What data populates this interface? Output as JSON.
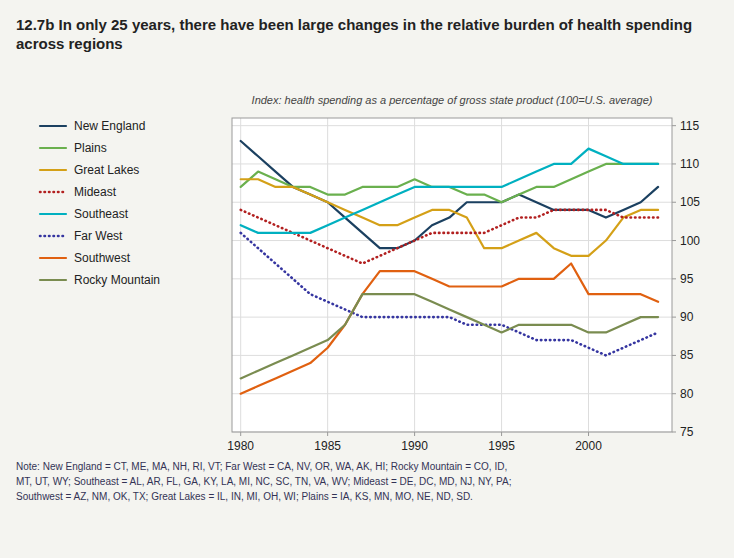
{
  "chart_data": {
    "type": "line",
    "title": "12.7b In only 25 years, there have been large changes in the relative burden of health spending across regions",
    "subtitle": "Index: health spending as a percentage of gross state product (100=U.S. average)",
    "annotations": [
      "Note: New England = CT, ME, MA, NH, RI, VT; Far West = CA, NV, OR, WA, AK, HI; Rocky Mountain = CO, ID,\nMT, UT, WY; Southeast = AL, AR, FL, GA, KY, LA, MI, NC, SC, TN, VA, WV; Mideast = DE, DC, MD, NJ, NY, PA;\nSouthwest = AZ, NM, OK, TX; Great Lakes = IL, IN, MI, OH, WI; Plains = IA, KS, MN, MO, NE, ND, SD."
    ],
    "x": [
      1980,
      1981,
      1982,
      1983,
      1984,
      1985,
      1986,
      1987,
      1988,
      1989,
      1990,
      1991,
      1992,
      1993,
      1994,
      1995,
      1996,
      1997,
      1998,
      1999,
      2000,
      2001,
      2002,
      2003,
      2004
    ],
    "series": [
      {
        "name": "New England",
        "color": "#1b4060",
        "line_style": "solid",
        "values": [
          113,
          111,
          109,
          107,
          106,
          105,
          103,
          101,
          99,
          99,
          100,
          102,
          103,
          105,
          105,
          105,
          106,
          105,
          104,
          104,
          104,
          103,
          104,
          105,
          107
        ]
      },
      {
        "name": "Plains",
        "color": "#6ab04e",
        "line_style": "solid",
        "values": [
          107,
          109,
          108,
          107,
          107,
          106,
          106,
          107,
          107,
          107,
          108,
          107,
          107,
          106,
          106,
          105,
          106,
          107,
          107,
          108,
          109,
          110,
          110,
          110,
          110
        ]
      },
      {
        "name": "Great Lakes",
        "color": "#d4a017",
        "line_style": "solid",
        "values": [
          108,
          108,
          107,
          107,
          106,
          105,
          104,
          103,
          102,
          102,
          103,
          104,
          104,
          103,
          99,
          99,
          100,
          101,
          99,
          98,
          98,
          100,
          103,
          104,
          104
        ]
      },
      {
        "name": "Mideast",
        "color": "#b22020",
        "line_style": "dotted",
        "values": [
          104,
          103,
          102,
          101,
          100,
          99,
          98,
          97,
          98,
          99,
          100,
          101,
          101,
          101,
          101,
          102,
          103,
          103,
          104,
          104,
          104,
          104,
          103,
          103,
          103
        ]
      },
      {
        "name": "Southeast",
        "color": "#00b0c0",
        "line_style": "solid",
        "values": [
          102,
          101,
          101,
          101,
          101,
          102,
          103,
          104,
          105,
          106,
          107,
          107,
          107,
          107,
          107,
          107,
          108,
          109,
          110,
          110,
          112,
          111,
          110,
          110,
          110
        ]
      },
      {
        "name": "Far West",
        "color": "#3535a0",
        "line_style": "dotted",
        "values": [
          101,
          99,
          97,
          95,
          93,
          92,
          91,
          90,
          90,
          90,
          90,
          90,
          90,
          89,
          89,
          89,
          88,
          87,
          87,
          87,
          86,
          85,
          86,
          87,
          88
        ]
      },
      {
        "name": "Southwest",
        "color": "#e06010",
        "line_style": "solid",
        "values": [
          80,
          81,
          82,
          83,
          84,
          86,
          89,
          93,
          96,
          96,
          96,
          95,
          94,
          94,
          94,
          94,
          95,
          95,
          95,
          97,
          93,
          93,
          93,
          93,
          92
        ]
      },
      {
        "name": "Rocky Mountain",
        "color": "#7a8c50",
        "line_style": "solid",
        "values": [
          82,
          83,
          84,
          85,
          86,
          87,
          89,
          93,
          93,
          93,
          93,
          92,
          91,
          90,
          89,
          88,
          89,
          89,
          89,
          89,
          88,
          88,
          89,
          90,
          90
        ]
      }
    ],
    "xlim": [
      1979.5,
      2004.8
    ],
    "ylim": [
      75,
      116
    ],
    "xticks": [
      1980,
      1985,
      1990,
      1995,
      2000
    ],
    "yticks": [
      75,
      80,
      85,
      90,
      95,
      100,
      105,
      110,
      115
    ],
    "grid": true,
    "legend": "left"
  }
}
